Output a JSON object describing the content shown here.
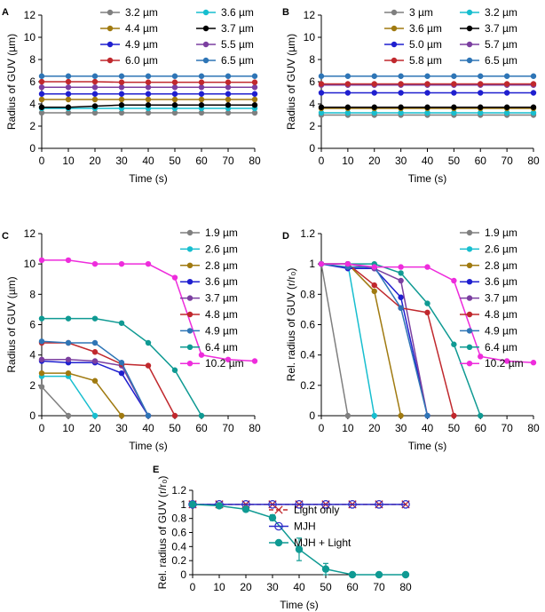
{
  "chart_data": [
    {
      "id": "A",
      "panel_label": "A",
      "type": "line",
      "xlabel": "Time (s)",
      "ylabel": "Radius of GUV (µm)",
      "xlim": [
        0,
        80
      ],
      "ylim": [
        0,
        12
      ],
      "xticks": [
        "0",
        "10",
        "20",
        "30",
        "40",
        "50",
        "60",
        "70",
        "80"
      ],
      "yticks": [
        "0",
        "2",
        "4",
        "6",
        "8",
        "10",
        "12"
      ],
      "legend_columns": 2,
      "x": [
        0,
        10,
        20,
        30,
        40,
        50,
        60,
        70,
        80
      ],
      "series": [
        {
          "name": "3.2  µm",
          "color": "#7f7f7f",
          "values": [
            3.2,
            3.2,
            3.2,
            3.2,
            3.2,
            3.2,
            3.2,
            3.2,
            3.2
          ]
        },
        {
          "name": "3.6  µm",
          "color": "#17becf",
          "values": [
            3.6,
            3.6,
            3.6,
            3.6,
            3.6,
            3.6,
            3.6,
            3.6,
            3.6
          ]
        },
        {
          "name": "4.4  µm",
          "color": "#a07a10",
          "values": [
            4.4,
            4.4,
            4.4,
            4.4,
            4.4,
            4.4,
            4.4,
            4.4,
            4.4
          ]
        },
        {
          "name": "3.7  µm",
          "color": "#000000",
          "values": [
            3.7,
            3.7,
            3.8,
            3.9,
            3.9,
            3.9,
            3.9,
            3.9,
            3.9
          ]
        },
        {
          "name": "4.9  µm",
          "color": "#1f1fcf",
          "values": [
            4.9,
            4.9,
            4.9,
            4.9,
            4.9,
            4.9,
            4.9,
            4.9,
            4.9
          ]
        },
        {
          "name": "5.5  µm",
          "color": "#7b3fa0",
          "values": [
            5.5,
            5.5,
            5.5,
            5.5,
            5.5,
            5.5,
            5.5,
            5.5,
            5.5
          ]
        },
        {
          "name": "6.0  µm",
          "color": "#c0282d",
          "values": [
            6.0,
            6.0,
            6.0,
            5.95,
            5.95,
            5.95,
            5.95,
            5.95,
            5.95
          ]
        },
        {
          "name": "6.5  µm",
          "color": "#2e75b6",
          "values": [
            6.5,
            6.5,
            6.5,
            6.5,
            6.5,
            6.5,
            6.5,
            6.5,
            6.5
          ]
        }
      ]
    },
    {
      "id": "B",
      "panel_label": "B",
      "type": "line",
      "xlabel": "Time (s)",
      "ylabel": "Radius of GUV (µm)",
      "xlim": [
        0,
        80
      ],
      "ylim": [
        0,
        12
      ],
      "xticks": [
        "0",
        "10",
        "20",
        "30",
        "40",
        "50",
        "60",
        "70",
        "80"
      ],
      "yticks": [
        "0",
        "2",
        "4",
        "6",
        "8",
        "10",
        "12"
      ],
      "legend_columns": 2,
      "x": [
        0,
        10,
        20,
        30,
        40,
        50,
        60,
        70,
        80
      ],
      "series": [
        {
          "name": "3  µm",
          "color": "#7f7f7f",
          "values": [
            3.0,
            3.0,
            3.0,
            3.0,
            3.0,
            3.0,
            3.0,
            3.0,
            3.0
          ]
        },
        {
          "name": "3.2  µm",
          "color": "#17becf",
          "values": [
            3.2,
            3.2,
            3.2,
            3.2,
            3.2,
            3.2,
            3.2,
            3.2,
            3.2
          ]
        },
        {
          "name": "3.6  µm",
          "color": "#a07a10",
          "values": [
            3.6,
            3.6,
            3.6,
            3.6,
            3.6,
            3.6,
            3.6,
            3.6,
            3.6
          ]
        },
        {
          "name": "3.7  µm",
          "color": "#000000",
          "values": [
            3.7,
            3.7,
            3.7,
            3.7,
            3.7,
            3.7,
            3.7,
            3.7,
            3.7
          ]
        },
        {
          "name": "5.0  µm",
          "color": "#1f1fcf",
          "values": [
            5.0,
            5.0,
            5.0,
            5.0,
            5.0,
            5.0,
            5.0,
            5.0,
            5.0
          ]
        },
        {
          "name": "5.7  µm",
          "color": "#7b3fa0",
          "values": [
            5.7,
            5.7,
            5.7,
            5.7,
            5.7,
            5.7,
            5.7,
            5.7,
            5.7
          ]
        },
        {
          "name": "5.8  µm",
          "color": "#c0282d",
          "values": [
            5.8,
            5.8,
            5.8,
            5.8,
            5.8,
            5.8,
            5.8,
            5.8,
            5.8
          ]
        },
        {
          "name": "6.5  µm",
          "color": "#2e75b6",
          "values": [
            6.5,
            6.5,
            6.5,
            6.5,
            6.5,
            6.5,
            6.5,
            6.5,
            6.5
          ]
        }
      ]
    },
    {
      "id": "C",
      "panel_label": "C",
      "type": "line",
      "xlabel": "Time (s)",
      "ylabel": "Radius of GUV (µm)",
      "xlim": [
        0,
        80
      ],
      "ylim": [
        0,
        12
      ],
      "xticks": [
        "0",
        "10",
        "20",
        "30",
        "40",
        "50",
        "60",
        "70",
        "80"
      ],
      "yticks": [
        "0",
        "2",
        "4",
        "6",
        "8",
        "10",
        "12"
      ],
      "legend_columns": 1,
      "x": [
        0,
        10,
        20,
        30,
        40,
        50,
        60,
        70,
        80
      ],
      "series": [
        {
          "name": "1.9  µm",
          "color": "#7f7f7f",
          "values": [
            1.9,
            0,
            null,
            null,
            null,
            null,
            null,
            null,
            null
          ]
        },
        {
          "name": "2.6  µm",
          "color": "#17becf",
          "values": [
            2.6,
            2.6,
            0,
            null,
            null,
            null,
            null,
            null,
            null
          ]
        },
        {
          "name": "2.8  µm",
          "color": "#a07a10",
          "values": [
            2.8,
            2.8,
            2.3,
            0,
            null,
            null,
            null,
            null,
            null
          ]
        },
        {
          "name": "3.6  µm",
          "color": "#1f1fcf",
          "values": [
            3.6,
            3.5,
            3.5,
            2.8,
            0,
            null,
            null,
            null,
            null
          ]
        },
        {
          "name": "3.7  µm",
          "color": "#7b3fa0",
          "values": [
            3.7,
            3.7,
            3.6,
            3.3,
            0,
            null,
            null,
            null,
            null
          ]
        },
        {
          "name": "4.8  µm",
          "color": "#c0282d",
          "values": [
            4.8,
            4.8,
            4.2,
            3.4,
            3.3,
            0,
            null,
            null,
            null
          ]
        },
        {
          "name": "4.9  µm",
          "color": "#2e75b6",
          "values": [
            4.9,
            4.8,
            4.8,
            3.5,
            0,
            null,
            null,
            null,
            null
          ]
        },
        {
          "name": "6.4  µm",
          "color": "#0f9a93",
          "values": [
            6.4,
            6.4,
            6.4,
            6.1,
            4.8,
            3.0,
            0,
            null,
            null
          ]
        },
        {
          "name": "10.2 µm",
          "color": "#ee2cdc",
          "values": [
            10.25,
            10.25,
            10.0,
            10.0,
            10.0,
            9.1,
            4.0,
            3.7,
            3.6
          ]
        }
      ]
    },
    {
      "id": "D",
      "panel_label": "D",
      "type": "line",
      "xlabel": "Time (s)",
      "ylabel": "Rel. radius of GUV (r/r₀)",
      "xlim": [
        0,
        80
      ],
      "ylim": [
        0,
        1.2
      ],
      "xticks": [
        "0",
        "10",
        "20",
        "30",
        "40",
        "50",
        "60",
        "70",
        "80"
      ],
      "yticks": [
        "0",
        "0.2",
        "0.4",
        "0.6",
        "0.8",
        "1",
        "1.2"
      ],
      "legend_columns": 1,
      "x": [
        0,
        10,
        20,
        30,
        40,
        50,
        60,
        70,
        80
      ],
      "series": [
        {
          "name": "1.9  µm",
          "color": "#7f7f7f",
          "values": [
            1,
            0,
            null,
            null,
            null,
            null,
            null,
            null,
            null
          ]
        },
        {
          "name": "2.6  µm",
          "color": "#17becf",
          "values": [
            1,
            1,
            0,
            null,
            null,
            null,
            null,
            null,
            null
          ]
        },
        {
          "name": "2.8  µm",
          "color": "#a07a10",
          "values": [
            1,
            1,
            0.82,
            0,
            null,
            null,
            null,
            null,
            null
          ]
        },
        {
          "name": "3.6  µm",
          "color": "#1f1fcf",
          "values": [
            1,
            0.97,
            0.97,
            0.78,
            0,
            null,
            null,
            null,
            null
          ]
        },
        {
          "name": "3.7  µm",
          "color": "#7b3fa0",
          "values": [
            1,
            1,
            0.97,
            0.89,
            0,
            null,
            null,
            null,
            null
          ]
        },
        {
          "name": "4.8  µm",
          "color": "#c0282d",
          "values": [
            1,
            1,
            0.86,
            0.71,
            0.68,
            0,
            null,
            null,
            null
          ]
        },
        {
          "name": "4.9  µm",
          "color": "#2e75b6",
          "values": [
            1,
            0.98,
            0.98,
            0.71,
            0,
            null,
            null,
            null,
            null
          ]
        },
        {
          "name": "6.4  µm",
          "color": "#0f9a93",
          "values": [
            1,
            1,
            1,
            0.94,
            0.74,
            0.47,
            0,
            null,
            null
          ]
        },
        {
          "name": "10.2 µm",
          "color": "#ee2cdc",
          "values": [
            1,
            1,
            0.98,
            0.98,
            0.98,
            0.89,
            0.39,
            0.36,
            0.35
          ]
        }
      ]
    },
    {
      "id": "E",
      "panel_label": "E",
      "type": "line",
      "xlabel": "Time (s)",
      "ylabel": "Rel. radius of GUV (r/r₀)",
      "xlim": [
        0,
        80
      ],
      "ylim": [
        0,
        1.2
      ],
      "xticks": [
        "0",
        "10",
        "20",
        "30",
        "40",
        "50",
        "60",
        "70",
        "80"
      ],
      "yticks": [
        "0",
        "0.2",
        "0.4",
        "0.6",
        "0.8",
        "1",
        "1.2"
      ],
      "legend_columns": 1,
      "x": [
        0,
        10,
        20,
        30,
        40,
        50,
        60,
        70,
        80
      ],
      "series": [
        {
          "name": "Light only",
          "color": "#c0282d",
          "marker": "x",
          "dashed": true,
          "values": [
            1,
            1,
            1,
            1,
            1,
            1,
            1,
            1,
            1
          ]
        },
        {
          "name": "MJH",
          "color": "#2b2bc8",
          "marker": "open-circle",
          "values": [
            1,
            1,
            1,
            1,
            1,
            1,
            1,
            1,
            1
          ]
        },
        {
          "name": "MJH + Light",
          "color": "#0f9a93",
          "marker": "filled-circle",
          "values": [
            1,
            0.98,
            0.93,
            0.81,
            0.36,
            0.08,
            0,
            0,
            0
          ],
          "errors": [
            0.02,
            0.02,
            0.03,
            0.04,
            0.16,
            0.08,
            0,
            0,
            0
          ]
        }
      ]
    }
  ]
}
